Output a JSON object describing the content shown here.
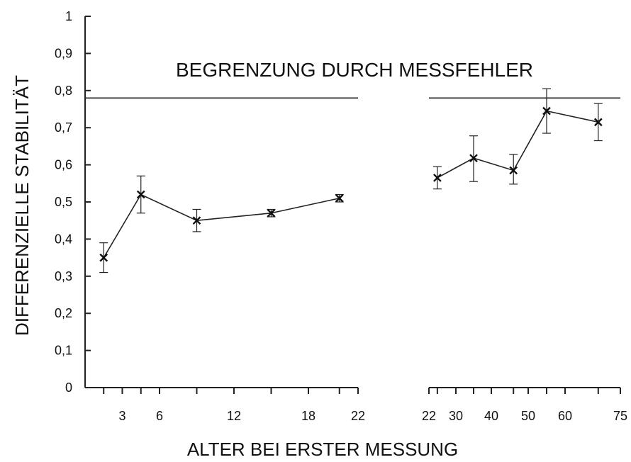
{
  "chart_data": {
    "type": "line",
    "ylabel": "DIFFERENZIELLE STABILITÄT",
    "xlabel": "ALTER BEI ERSTER MESSUNG",
    "annotation": "BEGRENZUNG DURCH MESSFEHLER",
    "ylim": [
      0,
      1
    ],
    "y_ticks": [
      "0",
      "0,1",
      "0,2",
      "0,3",
      "0,4",
      "0,5",
      "0,6",
      "0,7",
      "0,8",
      "0,9",
      "1"
    ],
    "reference_line": 0.78,
    "grid": false,
    "segments": [
      {
        "xlim": [
          0,
          22
        ],
        "x_ticks": [
          "3",
          "6",
          "12",
          "18",
          "22"
        ],
        "points": [
          {
            "x": 1.5,
            "y": 0.35,
            "err_low": 0.31,
            "err_high": 0.39
          },
          {
            "x": 4.5,
            "y": 0.52,
            "err_low": 0.47,
            "err_high": 0.57
          },
          {
            "x": 9,
            "y": 0.45,
            "err_low": 0.42,
            "err_high": 0.48
          },
          {
            "x": 15,
            "y": 0.47,
            "err_low": 0.46,
            "err_high": 0.48
          },
          {
            "x": 20.5,
            "y": 0.51,
            "err_low": 0.5,
            "err_high": 0.52
          }
        ]
      },
      {
        "xlim": [
          22,
          75
        ],
        "x_ticks": [
          "22",
          "30",
          "40",
          "50",
          "60",
          "75"
        ],
        "points": [
          {
            "x": 24.5,
            "y": 0.565,
            "err_low": 0.535,
            "err_high": 0.595
          },
          {
            "x": 35,
            "y": 0.618,
            "err_low": 0.555,
            "err_high": 0.678
          },
          {
            "x": 46,
            "y": 0.585,
            "err_low": 0.548,
            "err_high": 0.628
          },
          {
            "x": 55,
            "y": 0.745,
            "err_low": 0.685,
            "err_high": 0.805
          },
          {
            "x": 69,
            "y": 0.715,
            "err_low": 0.665,
            "err_high": 0.765
          }
        ]
      }
    ]
  }
}
